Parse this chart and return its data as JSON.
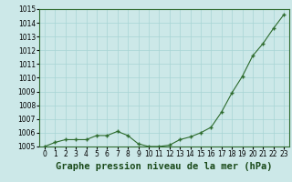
{
  "x": [
    0,
    1,
    2,
    3,
    4,
    5,
    6,
    7,
    8,
    9,
    10,
    11,
    12,
    13,
    14,
    15,
    16,
    17,
    18,
    19,
    20,
    21,
    22,
    23
  ],
  "y": [
    1005.0,
    1005.3,
    1005.5,
    1005.5,
    1005.5,
    1005.8,
    1005.8,
    1006.1,
    1005.8,
    1005.2,
    1005.0,
    1005.0,
    1005.1,
    1005.5,
    1005.7,
    1006.0,
    1006.4,
    1007.5,
    1008.9,
    1010.1,
    1011.6,
    1012.5,
    1013.6,
    1014.6
  ],
  "line_color": "#2d6b2d",
  "marker_color": "#2d6b2d",
  "bg_color": "#cce8e8",
  "grid_color": "#a8d4d4",
  "xlabel": "Graphe pression niveau de la mer (hPa)",
  "ylim_min": 1005,
  "ylim_max": 1015,
  "ytick_step": 1,
  "xtick_labels": [
    "0",
    "1",
    "2",
    "3",
    "4",
    "5",
    "6",
    "7",
    "8",
    "9",
    "10",
    "11",
    "12",
    "13",
    "14",
    "15",
    "16",
    "17",
    "18",
    "19",
    "20",
    "21",
    "22",
    "23"
  ],
  "title_fontsize": 7.5,
  "tick_fontsize": 5.5,
  "outer_bg": "#cce8e8",
  "spine_color": "#2d6b2d"
}
